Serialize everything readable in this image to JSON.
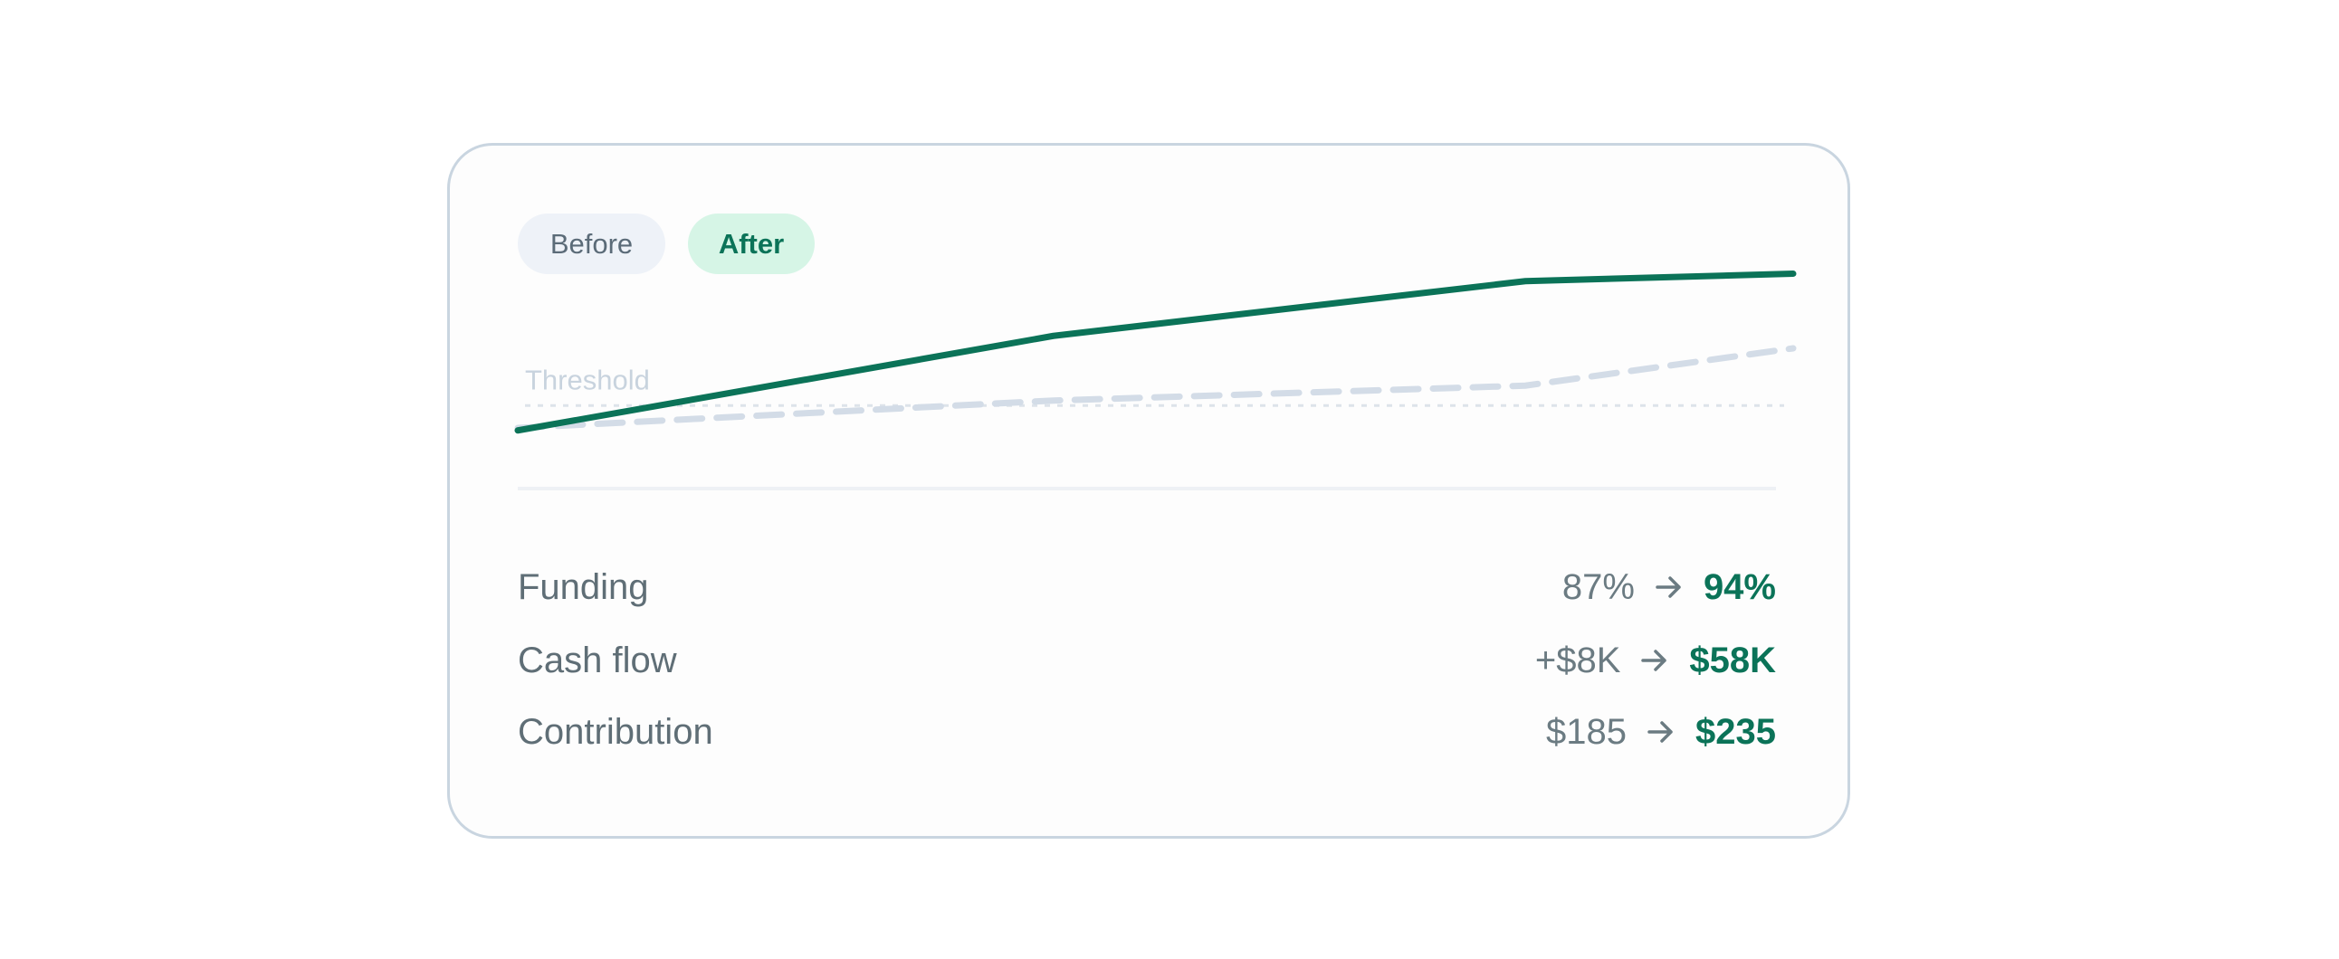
{
  "chart_data": {
    "type": "line",
    "x": [
      0,
      42,
      79,
      100
    ],
    "xlim": [
      0,
      100
    ],
    "ylim": [
      0,
      100
    ],
    "series": [
      {
        "name": "After",
        "color": "#0b7358",
        "dashed": false,
        "values": [
          23,
          61,
          83,
          86
        ]
      },
      {
        "name": "Before",
        "color": "#d3dce7",
        "dashed": true,
        "values": [
          24,
          35,
          41,
          56
        ]
      }
    ],
    "annotations": [
      {
        "text": "Threshold",
        "value": 33
      }
    ]
  },
  "metrics": {
    "rows": [
      [
        "Funding",
        "87%",
        "94%"
      ],
      [
        "Cash flow",
        "+$8K",
        "$58K"
      ],
      [
        "Contribution",
        "$185",
        "$235"
      ]
    ]
  }
}
